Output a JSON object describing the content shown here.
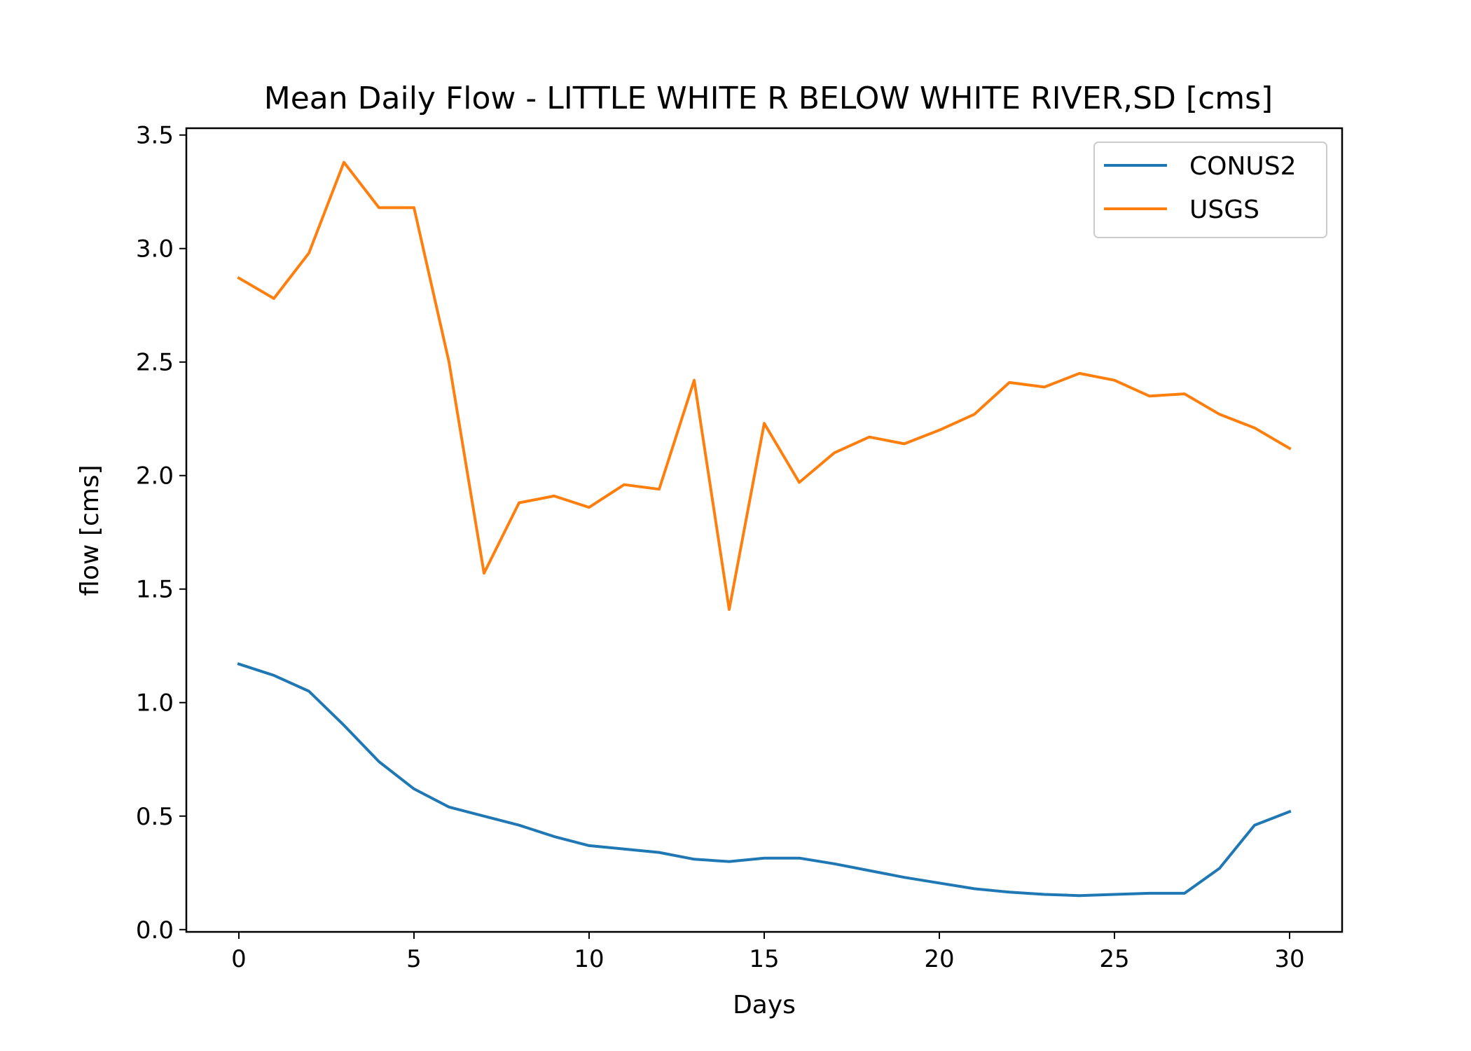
{
  "chart_data": {
    "type": "line",
    "title": "Mean Daily Flow - LITTLE WHITE R BELOW WHITE RIVER,SD [cms]",
    "xlabel": "Days",
    "ylabel": "flow [cms]",
    "xlim": [
      -1.5,
      31.5
    ],
    "ylim": [
      -0.01,
      3.53
    ],
    "x_ticks": [
      0,
      5,
      10,
      15,
      20,
      25,
      30
    ],
    "x_tick_labels": [
      "0",
      "5",
      "10",
      "15",
      "20",
      "25",
      "30"
    ],
    "y_ticks": [
      0.0,
      0.5,
      1.0,
      1.5,
      2.0,
      2.5,
      3.0,
      3.5
    ],
    "y_tick_labels": [
      "0.0",
      "0.5",
      "1.0",
      "1.5",
      "2.0",
      "2.5",
      "3.0",
      "3.5"
    ],
    "grid": false,
    "legend_position": "top-right",
    "x": [
      0,
      1,
      2,
      3,
      4,
      5,
      6,
      7,
      8,
      9,
      10,
      11,
      12,
      13,
      14,
      15,
      16,
      17,
      18,
      19,
      20,
      21,
      22,
      23,
      24,
      25,
      26,
      27,
      28,
      29,
      30
    ],
    "series": [
      {
        "name": "CONUS2",
        "color": "#1f77b4",
        "values": [
          1.17,
          1.12,
          1.05,
          0.9,
          0.74,
          0.62,
          0.54,
          0.5,
          0.46,
          0.41,
          0.37,
          0.355,
          0.34,
          0.31,
          0.3,
          0.315,
          0.315,
          0.29,
          0.26,
          0.23,
          0.205,
          0.18,
          0.165,
          0.155,
          0.15,
          0.155,
          0.16,
          0.16,
          0.27,
          0.46,
          0.52
        ]
      },
      {
        "name": "USGS",
        "color": "#ff7f0e",
        "values": [
          2.87,
          2.78,
          2.98,
          3.38,
          3.18,
          3.18,
          2.5,
          1.57,
          1.88,
          1.91,
          1.86,
          1.96,
          1.94,
          2.42,
          1.41,
          2.23,
          1.97,
          2.1,
          2.17,
          2.14,
          2.2,
          2.27,
          2.41,
          2.39,
          2.45,
          2.42,
          2.35,
          2.36,
          2.27,
          2.21,
          2.12
        ]
      }
    ]
  }
}
